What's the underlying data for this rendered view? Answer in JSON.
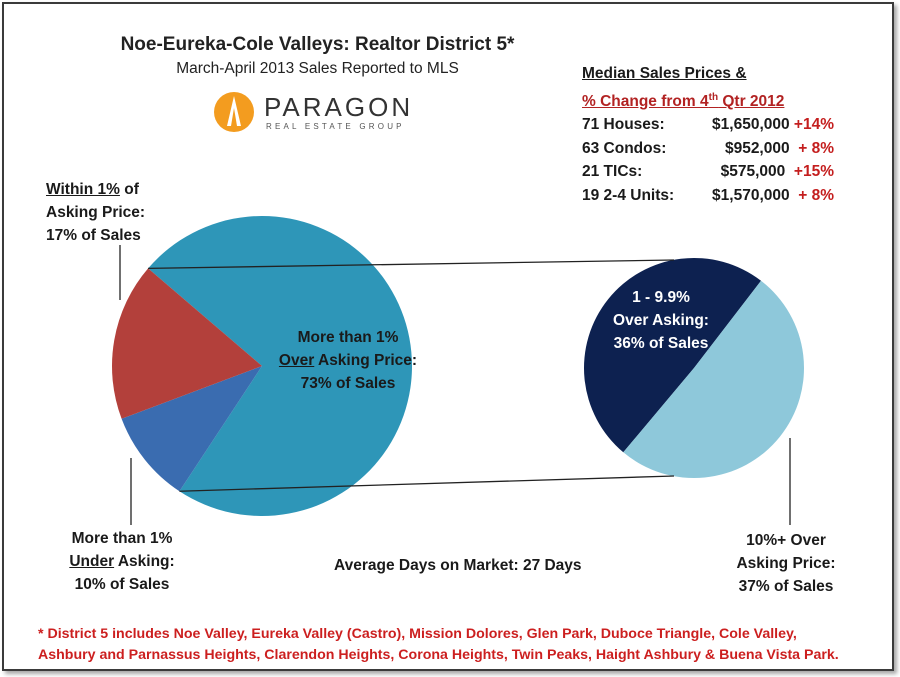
{
  "header": {
    "title": "Noe-Eureka-Cole Valleys: Realtor District 5*",
    "subtitle": "March-April 2013 Sales Reported to MLS"
  },
  "logo": {
    "word": "PARAGON",
    "tagline": "REAL ESTATE GROUP",
    "colors": {
      "mark": "#f39c1f",
      "text": "#333333"
    }
  },
  "median_prices": {
    "heading": "Median Sales Prices &",
    "subheading": "% Change from 4th Qtr 2012",
    "subheading_pre": "% Change from 4",
    "subheading_sup": "th",
    "subheading_post": " Qtr 2012",
    "rows": [
      {
        "label": "71 Houses:",
        "price": "$1,650,000",
        "change": "+14%"
      },
      {
        "label": "63 Condos:",
        "price": "$952,000",
        "change": "+ 8%"
      },
      {
        "label": "21 TICs:",
        "price": "$575,000",
        "change": "+15%"
      },
      {
        "label": "19 2-4 Units:",
        "price": "$1,570,000",
        "change": "+ 8%"
      }
    ]
  },
  "labels": {
    "within": {
      "l1a": "Within 1%",
      "l1b": " of",
      "l2": "Asking Price:",
      "l3": "17% of Sales"
    },
    "over_main": {
      "l1": "More than 1%",
      "l2a": "Over",
      "l2b": " Asking Price:",
      "l3": "73% of Sales"
    },
    "under": {
      "l1": "More than 1%",
      "l2a": "Under",
      "l2b": " Asking:",
      "l3": "10% of Sales"
    },
    "over_small": {
      "l1": "1 - 9.9%",
      "l2": "Over Asking:",
      "l3": "36% of Sales"
    },
    "over_large": {
      "l1": "10%+ Over",
      "l2": "Asking Price:",
      "l3": "37% of Sales"
    },
    "avg_days": "Average Days on Market: 27 Days"
  },
  "footnote": {
    "line1": "* District 5 includes Noe Valley, Eureka Valley (Castro), Mission Dolores, Glen Park, Duboce Triangle, Cole Valley,",
    "line2": "Ashbury and Parnassus Heights, Clarendon Heights, Corona Heights, Twin Peaks, Haight Ashbury & Buena Vista Park."
  },
  "chart_data": [
    {
      "type": "pie",
      "title": "",
      "slices": [
        {
          "label": "More than 1% Over Asking Price",
          "value": 73,
          "color": "#2e96b8"
        },
        {
          "label": "More than 1% Under Asking",
          "value": 10,
          "color": "#3a6cb0"
        },
        {
          "label": "Within 1% of Asking Price",
          "value": 17,
          "color": "#b3403b"
        }
      ]
    },
    {
      "type": "pie",
      "title": "",
      "slices": [
        {
          "label": "1 - 9.9% Over Asking",
          "value": 36,
          "color": "#0d2150"
        },
        {
          "label": "10%+ Over Asking Price",
          "value": 37,
          "color": "#8ec8da"
        }
      ]
    }
  ]
}
